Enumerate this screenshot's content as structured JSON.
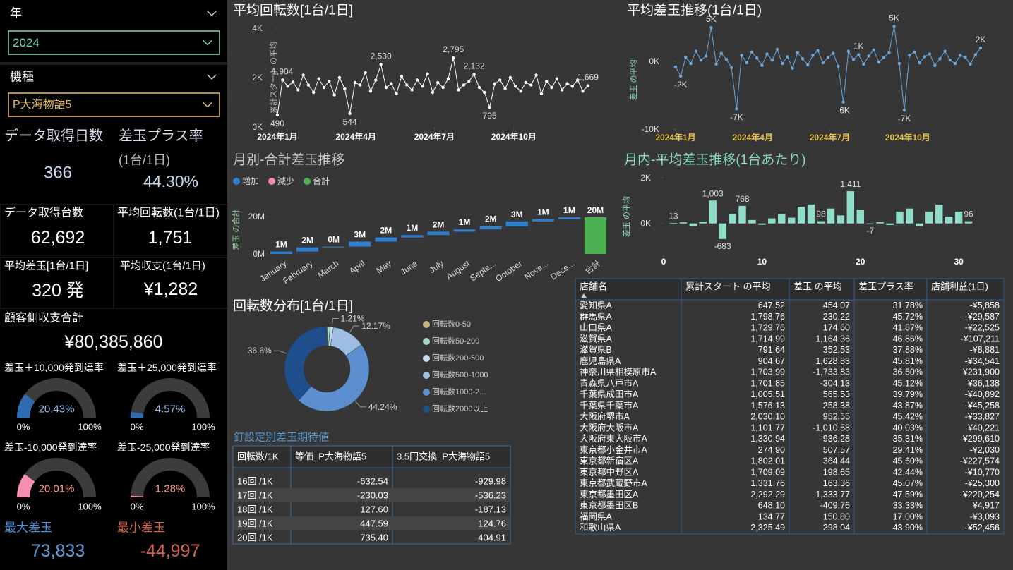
{
  "filters": [
    {
      "label": "年",
      "selected": "2024"
    },
    {
      "label": "機種",
      "selected": "P大海物語5"
    }
  ],
  "cards": [
    {
      "label": "データ取得日数",
      "value": "366"
    },
    {
      "label": "差玉プラス率",
      "sublabel": "(1台/1日)",
      "value": "44.30%"
    },
    {
      "label": "データ取得台数",
      "value": "62,692"
    },
    {
      "label": "平均回転数(1台/1日)",
      "value": "1,751"
    },
    {
      "label": "平均差玉[1台/1日]",
      "value": "320 発"
    },
    {
      "label": "平均収支(1台/1日)",
      "value": "¥1,282"
    },
    {
      "label": "顧客側収支合計",
      "value": "¥80,385,860"
    },
    {
      "label": "最大差玉",
      "value": "73,833"
    },
    {
      "label": "最小差玉",
      "value": "-44,997"
    }
  ],
  "chart_data": [
    {
      "type": "line",
      "title": "平均回転数[1台/1日]",
      "y_label": "累計スタート の平均",
      "color": "#ffffff",
      "grid": false,
      "x": [
        1,
        7,
        13,
        19,
        25,
        31,
        37,
        43,
        49,
        55,
        61,
        67,
        73,
        79,
        85,
        91,
        97,
        103,
        109,
        115,
        121,
        127,
        133,
        139,
        145,
        151,
        157,
        163,
        169,
        175,
        181,
        187,
        193,
        199,
        205,
        211,
        217,
        223,
        229,
        235,
        241,
        247,
        253,
        259,
        265,
        271,
        277,
        283,
        289,
        295,
        301,
        307,
        313,
        319,
        325,
        331,
        337,
        343,
        349,
        355,
        361
      ],
      "values": [
        490,
        1904,
        1650,
        1820,
        1500,
        2100,
        1700,
        1400,
        1950,
        1600,
        1850,
        1300,
        2000,
        1550,
        544,
        1800,
        1700,
        2200,
        1450,
        1900,
        2530,
        1600,
        1750,
        1350,
        2050,
        1700,
        1500,
        1900,
        1650,
        2150,
        1400,
        1800,
        1600,
        1950,
        2795,
        1500,
        1700,
        1850,
        2132,
        1600,
        1400,
        795,
        1750,
        1900,
        1550,
        2000,
        1650,
        1450,
        1800,
        1700,
        2100,
        1350,
        1850,
        1600,
        1950,
        1500,
        1750,
        1650,
        1900,
        1450,
        1669
      ],
      "value_labels": [
        "490",
        "1,904",
        null,
        null,
        null,
        null,
        null,
        null,
        null,
        null,
        null,
        null,
        null,
        null,
        "544",
        null,
        null,
        null,
        null,
        null,
        "2,530",
        null,
        null,
        null,
        null,
        null,
        null,
        null,
        null,
        null,
        null,
        null,
        null,
        null,
        "2,795",
        null,
        null,
        null,
        "2,132",
        null,
        null,
        "795",
        null,
        null,
        null,
        null,
        null,
        null,
        null,
        null,
        null,
        null,
        null,
        null,
        null,
        null,
        null,
        null,
        null,
        null,
        "1,669"
      ],
      "xlim": [
        1,
        366
      ],
      "xticks": [
        {
          "value": 1,
          "label": "2024年1月"
        },
        {
          "value": 92,
          "label": "2024年4月"
        },
        {
          "value": 183,
          "label": "2024年7月"
        },
        {
          "value": 275,
          "label": "2024年10月"
        }
      ],
      "ylim": [
        0,
        4000
      ],
      "yticks": [
        {
          "value": 0,
          "label": "0K"
        },
        {
          "value": 2000,
          "label": "2K"
        },
        {
          "value": 4000,
          "label": "4K"
        }
      ]
    },
    {
      "type": "line",
      "title": "平均差玉推移(1台/1日)",
      "y_label": "差玉 の平均",
      "color": "#6aa8dc",
      "grid": false,
      "x": [
        1,
        7,
        13,
        19,
        25,
        31,
        37,
        43,
        49,
        55,
        61,
        67,
        73,
        79,
        85,
        91,
        97,
        103,
        109,
        115,
        121,
        127,
        133,
        139,
        145,
        151,
        157,
        163,
        169,
        175,
        181,
        187,
        193,
        199,
        205,
        211,
        217,
        223,
        229,
        235,
        241,
        247,
        253,
        259,
        265,
        271,
        277,
        283,
        289,
        295,
        301,
        307,
        313,
        319,
        325,
        331,
        337,
        343,
        349,
        355,
        361
      ],
      "values": [
        -800,
        -2200,
        600,
        -300,
        1500,
        200,
        800,
        5000,
        -400,
        1200,
        300,
        -900,
        -7000,
        900,
        -200,
        1400,
        500,
        -600,
        1100,
        200,
        1800,
        -300,
        700,
        -1000,
        1300,
        400,
        -500,
        900,
        1600,
        -200,
        600,
        1200,
        -700,
        -6000,
        1500,
        300,
        1000,
        -400,
        800,
        1700,
        -100,
        600,
        1300,
        5200,
        -300,
        -7200,
        900,
        1400,
        -200,
        700,
        1100,
        -600,
        400,
        1500,
        200,
        -300,
        900,
        600,
        -400,
        1000,
        2000
      ],
      "value_labels": [
        null,
        "-2K",
        null,
        null,
        null,
        null,
        null,
        "5K",
        null,
        null,
        null,
        null,
        "-7K",
        null,
        null,
        null,
        null,
        null,
        null,
        null,
        null,
        null,
        null,
        null,
        null,
        null,
        null,
        null,
        null,
        null,
        null,
        null,
        null,
        "-6K",
        null,
        null,
        "1K",
        null,
        null,
        null,
        null,
        null,
        null,
        "5K",
        null,
        "-7K",
        null,
        null,
        null,
        null,
        null,
        null,
        null,
        null,
        null,
        null,
        null,
        null,
        null,
        null,
        "2K"
      ],
      "xlim": [
        1,
        366
      ],
      "xticks": [
        {
          "value": 1,
          "label": "2024年1月"
        },
        {
          "value": 92,
          "label": "2024年4月"
        },
        {
          "value": 183,
          "label": "2024年7月"
        },
        {
          "value": 275,
          "label": "2024年10月"
        }
      ],
      "ylim": [
        -10000,
        4500
      ],
      "yticks": [
        {
          "value": -10000,
          "label": "-10K"
        },
        {
          "value": 0,
          "label": "0K"
        }
      ]
    },
    {
      "type": "waterfall",
      "title": "月別-合計差玉推移",
      "y_label": "差玉 の合計",
      "legend": [
        {
          "name": "増加",
          "color": "#2f7fcf"
        },
        {
          "name": "減少",
          "color": "#f08bb0"
        },
        {
          "name": "合計",
          "color": "#4caf50"
        }
      ],
      "categories": [
        "January",
        "February",
        "March",
        "April",
        "May",
        "June",
        "July",
        "August",
        "Septe...",
        "October",
        "Nove...",
        "Dece...",
        "合計"
      ],
      "values": [
        1300000,
        2200000,
        400000,
        2700000,
        2200000,
        1300000,
        1800000,
        1200000,
        1700000,
        2600000,
        1200000,
        1000000,
        19600000
      ],
      "value_labels": [
        "1M",
        "2M",
        "0M",
        "3M",
        "2M",
        "1M",
        "2M",
        "1M",
        "2M",
        "3M",
        "1M",
        "1M",
        "20M"
      ],
      "ylim": [
        0,
        26000000
      ],
      "yticks": [
        {
          "value": 0,
          "label": "0M"
        },
        {
          "value": 20000000,
          "label": "20M"
        }
      ]
    },
    {
      "type": "bar",
      "title": "月内-平均差玉推移(1台あたり)",
      "y_label": "差玉 の平均",
      "color": "#8fdcc8",
      "x": [
        1,
        2,
        3,
        4,
        5,
        6,
        7,
        8,
        9,
        10,
        11,
        12,
        13,
        14,
        15,
        16,
        17,
        18,
        19,
        20,
        21,
        22,
        23,
        24,
        25,
        26,
        27,
        28,
        29,
        30,
        31
      ],
      "values": [
        13,
        50,
        -120,
        80,
        1003,
        -683,
        420,
        768,
        150,
        -60,
        220,
        420,
        250,
        730,
        830,
        98,
        650,
        350,
        1411,
        600,
        -7,
        60,
        -70,
        520,
        650,
        -120,
        520,
        820,
        300,
        520,
        96
      ],
      "value_labels": [
        "13",
        null,
        null,
        null,
        "1,003",
        "-683",
        null,
        "768",
        null,
        null,
        null,
        null,
        null,
        null,
        null,
        "98",
        null,
        null,
        "1,411",
        null,
        "-7",
        null,
        null,
        null,
        null,
        null,
        null,
        null,
        null,
        null,
        "96"
      ],
      "xlim": [
        0,
        32
      ],
      "xticks": [
        0,
        10,
        20,
        30
      ],
      "ylim": [
        -1400,
        2000
      ],
      "yticks": [
        {
          "value": 0,
          "label": "0K"
        },
        {
          "value": 2000,
          "label": "2K"
        }
      ]
    },
    {
      "type": "pie",
      "title": "回転数分布[1台/1日]",
      "categories": [
        "回転数0-50",
        "回転数50-200",
        "回転数200-500",
        "回転数500-1000",
        "回転数1000-2...",
        "回転数2000以上"
      ],
      "values": [
        0.3,
        0.9,
        1.21,
        12.17,
        44.24,
        36.6
      ],
      "value_labels": [
        null,
        null,
        "1.21%",
        "12.17%",
        "44.24%",
        "36.6%"
      ],
      "colors": [
        "#c8b27a",
        "#9fd9c0",
        "#c7d9ee",
        "#9dbde3",
        "#5b8fd0",
        "#1f4e8c"
      ]
    },
    {
      "type": "gauge",
      "title": "差玉＋10,000発到達率",
      "values": [
        20.43
      ],
      "value_labels": [
        "20.43%"
      ],
      "color": "#2f6bb0",
      "ylim": [
        0,
        100
      ],
      "yticks": [
        {
          "value": 0,
          "label": "0%"
        },
        {
          "value": 100,
          "label": "100%"
        }
      ]
    },
    {
      "type": "gauge",
      "title": "差玉＋25,000発到達率",
      "values": [
        4.57
      ],
      "value_labels": [
        "4.57%"
      ],
      "color": "#2f6bb0",
      "ylim": [
        0,
        100
      ],
      "yticks": [
        {
          "value": 0,
          "label": "0%"
        },
        {
          "value": 100,
          "label": "100%"
        }
      ]
    },
    {
      "type": "gauge",
      "title": "差玉-10,000発到達率",
      "values": [
        20.01
      ],
      "value_labels": [
        "20.01%"
      ],
      "color": "#f48fb1",
      "ylim": [
        0,
        100
      ],
      "yticks": [
        {
          "value": 0,
          "label": "0%"
        },
        {
          "value": 100,
          "label": "100%"
        }
      ]
    },
    {
      "type": "gauge",
      "title": "差玉-25,000発到達率",
      "values": [
        1.28
      ],
      "value_labels": [
        "1.28%"
      ],
      "color": "#f48fb1",
      "ylim": [
        0,
        100
      ],
      "yticks": [
        {
          "value": 0,
          "label": "0%"
        },
        {
          "value": 100,
          "label": "100%"
        }
      ]
    }
  ],
  "expectation_table": {
    "title": "釘設定別差玉期待値",
    "headers": [
      "回転数/1K",
      "等価_P大海物語5",
      "3.5円交換_P大海物語5"
    ],
    "rows": [
      [
        "16回 /1K",
        "-632.54",
        "-929.98"
      ],
      [
        "17回 /1K",
        "-230.03",
        "-536.23"
      ],
      [
        "18回 /1K",
        "127.60",
        "-187.13"
      ],
      [
        "19回 /1K",
        "447.59",
        "124.76"
      ],
      [
        "20回 /1K",
        "735.40",
        "404.91"
      ]
    ]
  },
  "store_table": {
    "headers": [
      "店舗名",
      "累計スタート の平均",
      "差玉 の平均",
      "差玉プラス率",
      "店舗利益(1日)"
    ],
    "rows": [
      [
        "愛知県A",
        "647.52",
        "454.07",
        "31.78%",
        "-¥5,858"
      ],
      [
        "群馬県A",
        "1,798.76",
        "230.22",
        "45.72%",
        "-¥29,587"
      ],
      [
        "山口県A",
        "1,729.76",
        "174.60",
        "41.87%",
        "-¥22,525"
      ],
      [
        "滋賀県A",
        "1,714.99",
        "1,164.36",
        "46.86%",
        "-¥107,211"
      ],
      [
        "滋賀県B",
        "791.64",
        "352.53",
        "37.88%",
        "-¥8,881"
      ],
      [
        "鹿児島県A",
        "904.67",
        "1,628.83",
        "45.81%",
        "-¥34,541"
      ],
      [
        "神奈川県相模原市A",
        "1,703.99",
        "-1,733.83",
        "36.50%",
        "¥231,900"
      ],
      [
        "青森県八戸市A",
        "1,701.85",
        "-304.13",
        "45.12%",
        "¥36,138"
      ],
      [
        "千葉県成田市A",
        "1,005.51",
        "565.53",
        "39.79%",
        "-¥40,892"
      ],
      [
        "千葉県千葉市A",
        "1,576.13",
        "258.38",
        "43.87%",
        "-¥45,258"
      ],
      [
        "大阪府堺市A",
        "2,030.10",
        "952.55",
        "45.42%",
        "-¥33,827"
      ],
      [
        "大阪府大阪市A",
        "1,101.77",
        "-1,010.58",
        "40.03%",
        "¥40,221"
      ],
      [
        "大阪府東大阪市A",
        "1,330.94",
        "-936.28",
        "35.31%",
        "¥299,610"
      ],
      [
        "東京都小金井市A",
        "274.90",
        "507.57",
        "29.41%",
        "-¥2,030"
      ],
      [
        "東京都新宿区A",
        "1,802.01",
        "364.44",
        "45.60%",
        "-¥227,574"
      ],
      [
        "東京都中野区A",
        "1,709.09",
        "198.65",
        "42.44%",
        "-¥10,770"
      ],
      [
        "東京都武蔵野市A",
        "1,331.76",
        "163.36",
        "45.07%",
        "-¥25,300"
      ],
      [
        "東京都墨田区A",
        "2,292.29",
        "1,333.77",
        "47.59%",
        "-¥220,254"
      ],
      [
        "東京都墨田区B",
        "648.10",
        "-409.76",
        "33.33%",
        "¥4,917"
      ],
      [
        "福岡県A",
        "134.77",
        "150.80",
        "17.00%",
        "-¥3,093"
      ],
      [
        "和歌山県A",
        "2,325.49",
        "298.04",
        "43.90%",
        "-¥52,456"
      ]
    ]
  }
}
